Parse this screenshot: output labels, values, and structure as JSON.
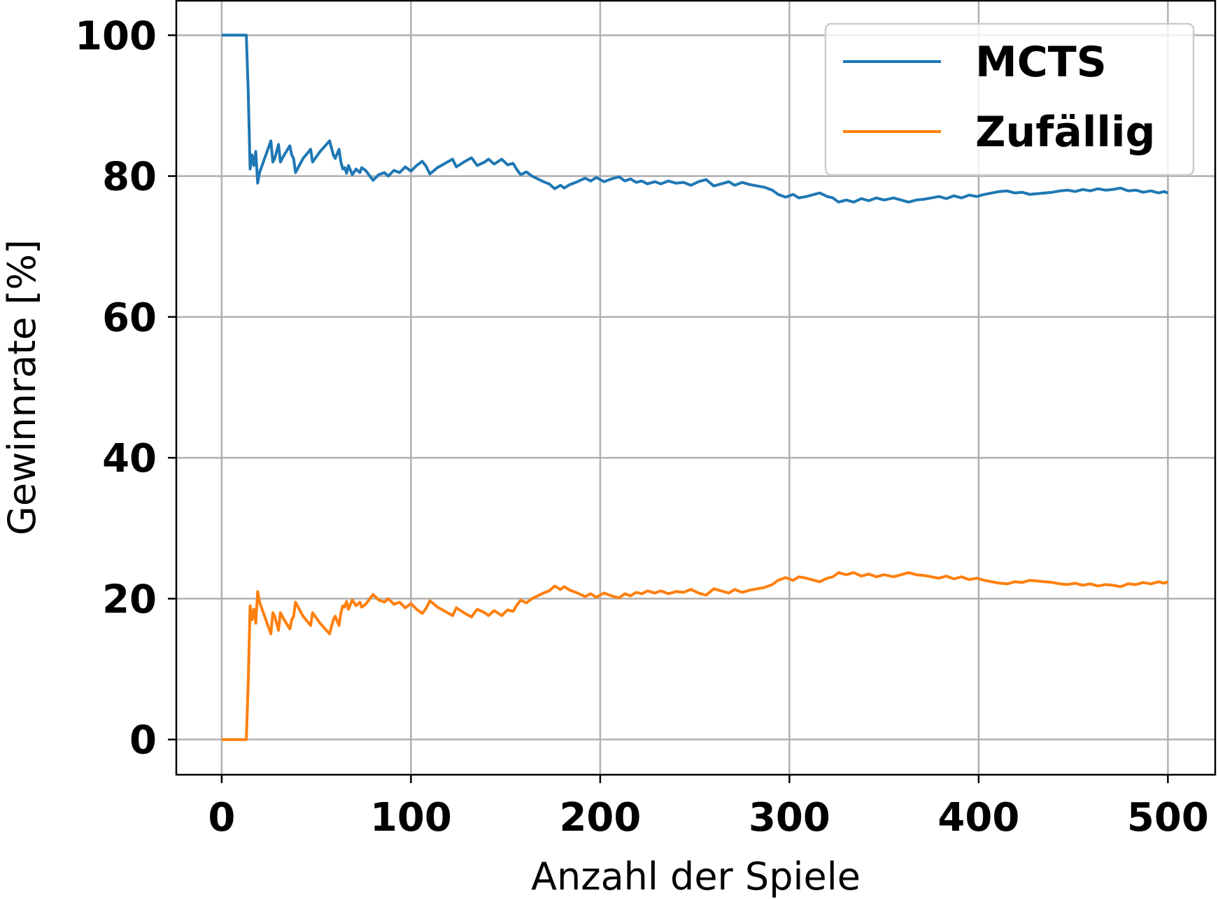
{
  "chart_data": {
    "type": "line",
    "title": "",
    "xlabel": "Anzahl der Spiele",
    "ylabel": "Gewinnrate [%]",
    "xlim": [
      -24,
      525
    ],
    "ylim": [
      -5,
      105
    ],
    "xticks": [
      0,
      100,
      200,
      300,
      400,
      500
    ],
    "yticks": [
      0,
      20,
      40,
      60,
      80,
      100
    ],
    "grid": true,
    "legend_position": "upper right",
    "series": [
      {
        "name": "MCTS",
        "color": "#1f77b4",
        "points": [
          [
            0,
            100
          ],
          [
            12,
            100
          ],
          [
            13,
            100
          ],
          [
            14,
            92
          ],
          [
            15,
            81
          ],
          [
            16,
            83
          ],
          [
            17,
            81.5
          ],
          [
            18,
            83.5
          ],
          [
            19,
            79
          ],
          [
            20,
            80.5
          ],
          [
            22,
            82
          ],
          [
            24,
            83.5
          ],
          [
            26,
            85
          ],
          [
            27,
            82
          ],
          [
            28,
            82.5
          ],
          [
            30,
            84.5
          ],
          [
            31,
            82
          ],
          [
            33,
            83
          ],
          [
            36,
            84.3
          ],
          [
            37,
            83
          ],
          [
            38,
            82.5
          ],
          [
            39,
            80.5
          ],
          [
            41,
            81.5
          ],
          [
            43,
            82.5
          ],
          [
            47,
            83.8
          ],
          [
            48,
            82
          ],
          [
            52,
            83.5
          ],
          [
            57,
            85
          ],
          [
            59,
            83
          ],
          [
            60,
            82.5
          ],
          [
            62,
            83.8
          ],
          [
            63,
            82
          ],
          [
            64,
            81
          ],
          [
            65,
            81.2
          ],
          [
            66,
            80.4
          ],
          [
            67,
            81.5
          ],
          [
            69,
            80.2
          ],
          [
            71,
            81
          ],
          [
            73,
            80.5
          ],
          [
            74,
            81.2
          ],
          [
            76,
            80.8
          ],
          [
            80,
            79.4
          ],
          [
            83,
            80.2
          ],
          [
            86,
            80.5
          ],
          [
            88,
            80
          ],
          [
            91,
            80.8
          ],
          [
            94,
            80.5
          ],
          [
            97,
            81.3
          ],
          [
            100,
            80.7
          ],
          [
            103,
            81.5
          ],
          [
            106,
            82.1
          ],
          [
            108,
            81.4
          ],
          [
            110,
            80.3
          ],
          [
            114,
            81.2
          ],
          [
            118,
            81.8
          ],
          [
            122,
            82.4
          ],
          [
            124,
            81.3
          ],
          [
            128,
            82
          ],
          [
            132,
            82.6
          ],
          [
            135,
            81.5
          ],
          [
            139,
            82
          ],
          [
            141,
            82.4
          ],
          [
            144,
            81.7
          ],
          [
            148,
            82.4
          ],
          [
            151,
            81.6
          ],
          [
            154,
            81.8
          ],
          [
            156,
            80.9
          ],
          [
            158,
            80.2
          ],
          [
            161,
            80.6
          ],
          [
            164,
            80
          ],
          [
            167,
            79.6
          ],
          [
            170,
            79.2
          ],
          [
            173,
            78.9
          ],
          [
            176,
            78.2
          ],
          [
            179,
            78.7
          ],
          [
            181,
            78.3
          ],
          [
            184,
            78.8
          ],
          [
            188,
            79.2
          ],
          [
            192,
            79.7
          ],
          [
            195,
            79.3
          ],
          [
            198,
            79.8
          ],
          [
            202,
            79.2
          ],
          [
            206,
            79.6
          ],
          [
            210,
            79.9
          ],
          [
            213,
            79.3
          ],
          [
            216,
            79.6
          ],
          [
            219,
            79.1
          ],
          [
            222,
            79.3
          ],
          [
            225,
            78.9
          ],
          [
            229,
            79.2
          ],
          [
            232,
            78.9
          ],
          [
            236,
            79.3
          ],
          [
            240,
            79
          ],
          [
            244,
            79.1
          ],
          [
            248,
            78.7
          ],
          [
            252,
            79.2
          ],
          [
            256,
            79.5
          ],
          [
            260,
            78.6
          ],
          [
            264,
            78.9
          ],
          [
            268,
            79.2
          ],
          [
            271,
            78.7
          ],
          [
            275,
            79.1
          ],
          [
            279,
            78.8
          ],
          [
            283,
            78.6
          ],
          [
            287,
            78.4
          ],
          [
            291,
            78
          ],
          [
            294,
            77.4
          ],
          [
            298,
            77
          ],
          [
            302,
            77.4
          ],
          [
            305,
            76.9
          ],
          [
            309,
            77.1
          ],
          [
            313,
            77.4
          ],
          [
            316,
            77.6
          ],
          [
            320,
            77.1
          ],
          [
            323,
            76.9
          ],
          [
            326,
            76.3
          ],
          [
            330,
            76.6
          ],
          [
            334,
            76.3
          ],
          [
            338,
            76.8
          ],
          [
            342,
            76.5
          ],
          [
            346,
            76.9
          ],
          [
            350,
            76.6
          ],
          [
            355,
            76.9
          ],
          [
            359,
            76.6
          ],
          [
            363,
            76.3
          ],
          [
            367,
            76.6
          ],
          [
            371,
            76.7
          ],
          [
            375,
            76.9
          ],
          [
            379,
            77.1
          ],
          [
            383,
            76.8
          ],
          [
            387,
            77.2
          ],
          [
            391,
            76.9
          ],
          [
            395,
            77.3
          ],
          [
            399,
            77.1
          ],
          [
            403,
            77.4
          ],
          [
            407,
            77.6
          ],
          [
            411,
            77.8
          ],
          [
            415,
            77.9
          ],
          [
            419,
            77.6
          ],
          [
            423,
            77.7
          ],
          [
            427,
            77.4
          ],
          [
            431,
            77.5
          ],
          [
            435,
            77.6
          ],
          [
            439,
            77.7
          ],
          [
            443,
            77.9
          ],
          [
            447,
            78
          ],
          [
            451,
            77.8
          ],
          [
            455,
            78.1
          ],
          [
            459,
            77.9
          ],
          [
            463,
            78.2
          ],
          [
            467,
            78
          ],
          [
            471,
            78.1
          ],
          [
            475,
            78.3
          ],
          [
            479,
            77.9
          ],
          [
            483,
            78
          ],
          [
            487,
            77.7
          ],
          [
            491,
            77.9
          ],
          [
            495,
            77.6
          ],
          [
            498,
            77.8
          ],
          [
            500,
            77.6
          ]
        ]
      },
      {
        "name": "Zufällig",
        "color": "#ff7f0e",
        "points": [
          [
            0,
            0
          ],
          [
            12,
            0
          ],
          [
            13,
            0
          ],
          [
            14,
            8
          ],
          [
            15,
            19
          ],
          [
            16,
            17
          ],
          [
            17,
            18.5
          ],
          [
            18,
            16.5
          ],
          [
            19,
            21
          ],
          [
            20,
            19.5
          ],
          [
            22,
            18
          ],
          [
            24,
            16.5
          ],
          [
            26,
            15
          ],
          [
            27,
            18
          ],
          [
            28,
            17.5
          ],
          [
            30,
            15.5
          ],
          [
            31,
            18
          ],
          [
            33,
            17
          ],
          [
            36,
            15.7
          ],
          [
            37,
            17
          ],
          [
            38,
            17.5
          ],
          [
            39,
            19.5
          ],
          [
            41,
            18.5
          ],
          [
            43,
            17.5
          ],
          [
            47,
            16.2
          ],
          [
            48,
            18
          ],
          [
            52,
            16.5
          ],
          [
            57,
            15
          ],
          [
            59,
            17
          ],
          [
            60,
            17.5
          ],
          [
            62,
            16.2
          ],
          [
            63,
            18
          ],
          [
            64,
            19
          ],
          [
            65,
            18.8
          ],
          [
            66,
            19.6
          ],
          [
            67,
            18.5
          ],
          [
            69,
            19.8
          ],
          [
            71,
            19
          ],
          [
            73,
            19.5
          ],
          [
            74,
            18.8
          ],
          [
            76,
            19.2
          ],
          [
            80,
            20.6
          ],
          [
            83,
            19.8
          ],
          [
            86,
            19.5
          ],
          [
            88,
            20
          ],
          [
            91,
            19.2
          ],
          [
            94,
            19.5
          ],
          [
            97,
            18.7
          ],
          [
            100,
            19.3
          ],
          [
            103,
            18.5
          ],
          [
            106,
            17.9
          ],
          [
            108,
            18.6
          ],
          [
            110,
            19.7
          ],
          [
            114,
            18.8
          ],
          [
            118,
            18.2
          ],
          [
            122,
            17.6
          ],
          [
            124,
            18.7
          ],
          [
            128,
            18
          ],
          [
            132,
            17.4
          ],
          [
            135,
            18.5
          ],
          [
            139,
            18
          ],
          [
            141,
            17.6
          ],
          [
            144,
            18.3
          ],
          [
            148,
            17.6
          ],
          [
            151,
            18.4
          ],
          [
            154,
            18.2
          ],
          [
            156,
            19.1
          ],
          [
            158,
            19.8
          ],
          [
            161,
            19.4
          ],
          [
            164,
            20
          ],
          [
            167,
            20.4
          ],
          [
            170,
            20.8
          ],
          [
            173,
            21.1
          ],
          [
            176,
            21.8
          ],
          [
            179,
            21.3
          ],
          [
            181,
            21.7
          ],
          [
            184,
            21.2
          ],
          [
            188,
            20.8
          ],
          [
            192,
            20.3
          ],
          [
            195,
            20.7
          ],
          [
            198,
            20.2
          ],
          [
            202,
            20.8
          ],
          [
            206,
            20.4
          ],
          [
            210,
            20.1
          ],
          [
            213,
            20.7
          ],
          [
            216,
            20.4
          ],
          [
            219,
            20.9
          ],
          [
            222,
            20.7
          ],
          [
            225,
            21.1
          ],
          [
            229,
            20.8
          ],
          [
            232,
            21.1
          ],
          [
            236,
            20.7
          ],
          [
            240,
            21
          ],
          [
            244,
            20.9
          ],
          [
            248,
            21.3
          ],
          [
            252,
            20.8
          ],
          [
            256,
            20.5
          ],
          [
            260,
            21.4
          ],
          [
            264,
            21.1
          ],
          [
            268,
            20.8
          ],
          [
            271,
            21.3
          ],
          [
            275,
            20.9
          ],
          [
            279,
            21.2
          ],
          [
            283,
            21.4
          ],
          [
            287,
            21.6
          ],
          [
            291,
            22
          ],
          [
            294,
            22.6
          ],
          [
            298,
            23
          ],
          [
            302,
            22.6
          ],
          [
            305,
            23.1
          ],
          [
            309,
            22.9
          ],
          [
            313,
            22.6
          ],
          [
            316,
            22.4
          ],
          [
            320,
            22.9
          ],
          [
            323,
            23.1
          ],
          [
            326,
            23.7
          ],
          [
            330,
            23.4
          ],
          [
            334,
            23.7
          ],
          [
            338,
            23.2
          ],
          [
            342,
            23.5
          ],
          [
            346,
            23.1
          ],
          [
            350,
            23.4
          ],
          [
            355,
            23.1
          ],
          [
            359,
            23.4
          ],
          [
            363,
            23.7
          ],
          [
            367,
            23.4
          ],
          [
            371,
            23.3
          ],
          [
            375,
            23.1
          ],
          [
            379,
            22.9
          ],
          [
            383,
            23.2
          ],
          [
            387,
            22.8
          ],
          [
            391,
            23.1
          ],
          [
            395,
            22.7
          ],
          [
            399,
            22.9
          ],
          [
            403,
            22.6
          ],
          [
            407,
            22.4
          ],
          [
            411,
            22.2
          ],
          [
            415,
            22.1
          ],
          [
            419,
            22.4
          ],
          [
            423,
            22.3
          ],
          [
            427,
            22.6
          ],
          [
            431,
            22.5
          ],
          [
            435,
            22.4
          ],
          [
            439,
            22.3
          ],
          [
            443,
            22.1
          ],
          [
            447,
            22
          ],
          [
            451,
            22.2
          ],
          [
            455,
            21.9
          ],
          [
            459,
            22.1
          ],
          [
            463,
            21.8
          ],
          [
            467,
            22
          ],
          [
            471,
            21.9
          ],
          [
            475,
            21.7
          ],
          [
            479,
            22.1
          ],
          [
            483,
            22
          ],
          [
            487,
            22.3
          ],
          [
            491,
            22.1
          ],
          [
            495,
            22.4
          ],
          [
            498,
            22.2
          ],
          [
            500,
            22.4
          ]
        ]
      }
    ]
  }
}
